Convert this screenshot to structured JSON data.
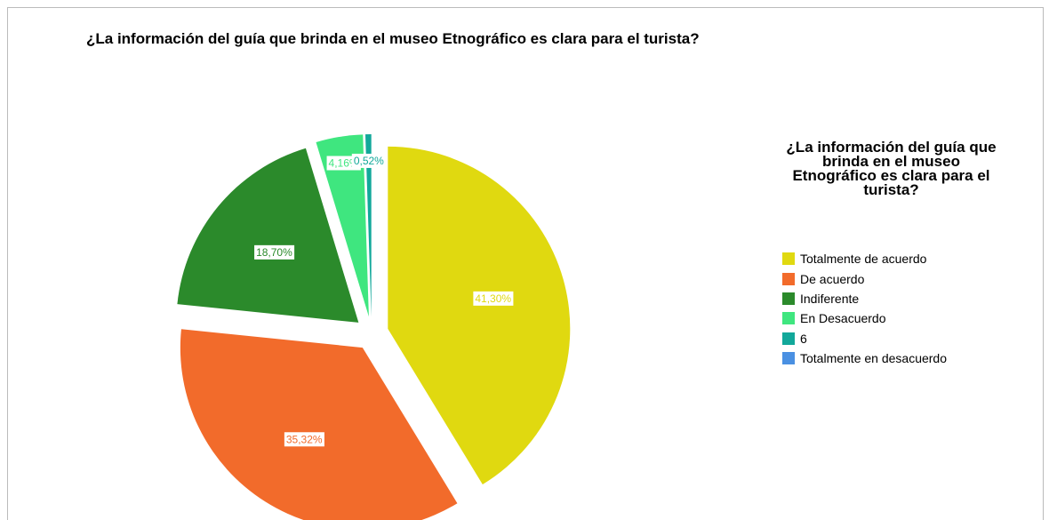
{
  "chart_data": {
    "type": "pie",
    "title": "¿La información del guía que brinda en el museo Etnográfico es clara para el turista?",
    "legend_title": "¿La información del guía que brinda en el museo Etnográfico es clara para el turista?",
    "categories": [
      "Totalmente de acuerdo",
      "De acuerdo",
      "Indiferente",
      "En Desacuerdo",
      "6",
      "Totalmente en desacuerdo"
    ],
    "values": [
      41.3,
      35.32,
      18.7,
      4.16,
      0.52,
      0
    ],
    "value_labels": [
      "41,30%",
      "35,32%",
      "18,70%",
      "4,16%",
      "0,52%",
      null
    ],
    "colors": [
      "#e0d910",
      "#f26b2b",
      "#2b8a2b",
      "#3fe67f",
      "#12a89a",
      "#4a90e2"
    ],
    "legend": "right"
  }
}
